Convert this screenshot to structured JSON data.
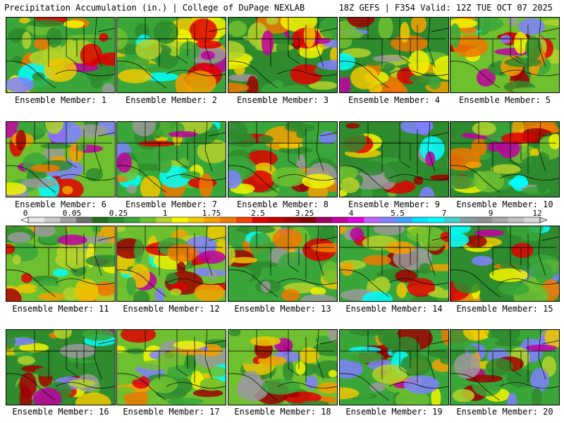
{
  "header": {
    "left": "Precipitation Accumulation (in.) | College of DuPage NEXLAB",
    "right": "18Z GEFS | F354 Valid: 12Z TUE OCT 07 2025"
  },
  "panels": [
    {
      "label": "Ensemble Member: 1"
    },
    {
      "label": "Ensemble Member: 2"
    },
    {
      "label": "Ensemble Member: 3"
    },
    {
      "label": "Ensemble Member: 4"
    },
    {
      "label": "Ensemble Member: 5"
    },
    {
      "label": "Ensemble Member: 6"
    },
    {
      "label": "Ensemble Member: 7"
    },
    {
      "label": "Ensemble Member: 8"
    },
    {
      "label": "Ensemble Member: 9"
    },
    {
      "label": "Ensemble Member: 10"
    },
    {
      "label": "Ensemble Member: 11"
    },
    {
      "label": "Ensemble Member: 12"
    },
    {
      "label": "Ensemble Member: 13"
    },
    {
      "label": "Ensemble Member: 14"
    },
    {
      "label": "Ensemble Member: 15"
    },
    {
      "label": "Ensemble Member: 16"
    },
    {
      "label": "Ensemble Member: 17"
    },
    {
      "label": "Ensemble Member: 18"
    },
    {
      "label": "Ensemble Member: 19"
    },
    {
      "label": "Ensemble Member: 20"
    }
  ],
  "colorbar": {
    "labels": [
      "0",
      "0.05",
      "0.25",
      "1",
      "1.75",
      "2.5",
      "3.25",
      "4",
      "5.5",
      "7",
      "9",
      "12"
    ],
    "colors": [
      "#e6e6e6",
      "#c8c8c8",
      "#a0a0a0",
      "#6e6e6e",
      "#1f6f1f",
      "#2e8b2e",
      "#3aa63a",
      "#6fc02f",
      "#b4d22a",
      "#f5f500",
      "#f0c800",
      "#f5a000",
      "#f07800",
      "#f04000",
      "#e00000",
      "#c00000",
      "#a00000",
      "#800000",
      "#a00060",
      "#c000a0",
      "#e000e0",
      "#c060ff",
      "#8080ff",
      "#40a0ff",
      "#00e0ff",
      "#00ffff",
      "#40d0d0",
      "#80a0a0",
      "#909090",
      "#a8a8a8",
      "#c0c0c0",
      "#d8d8d8"
    ]
  }
}
